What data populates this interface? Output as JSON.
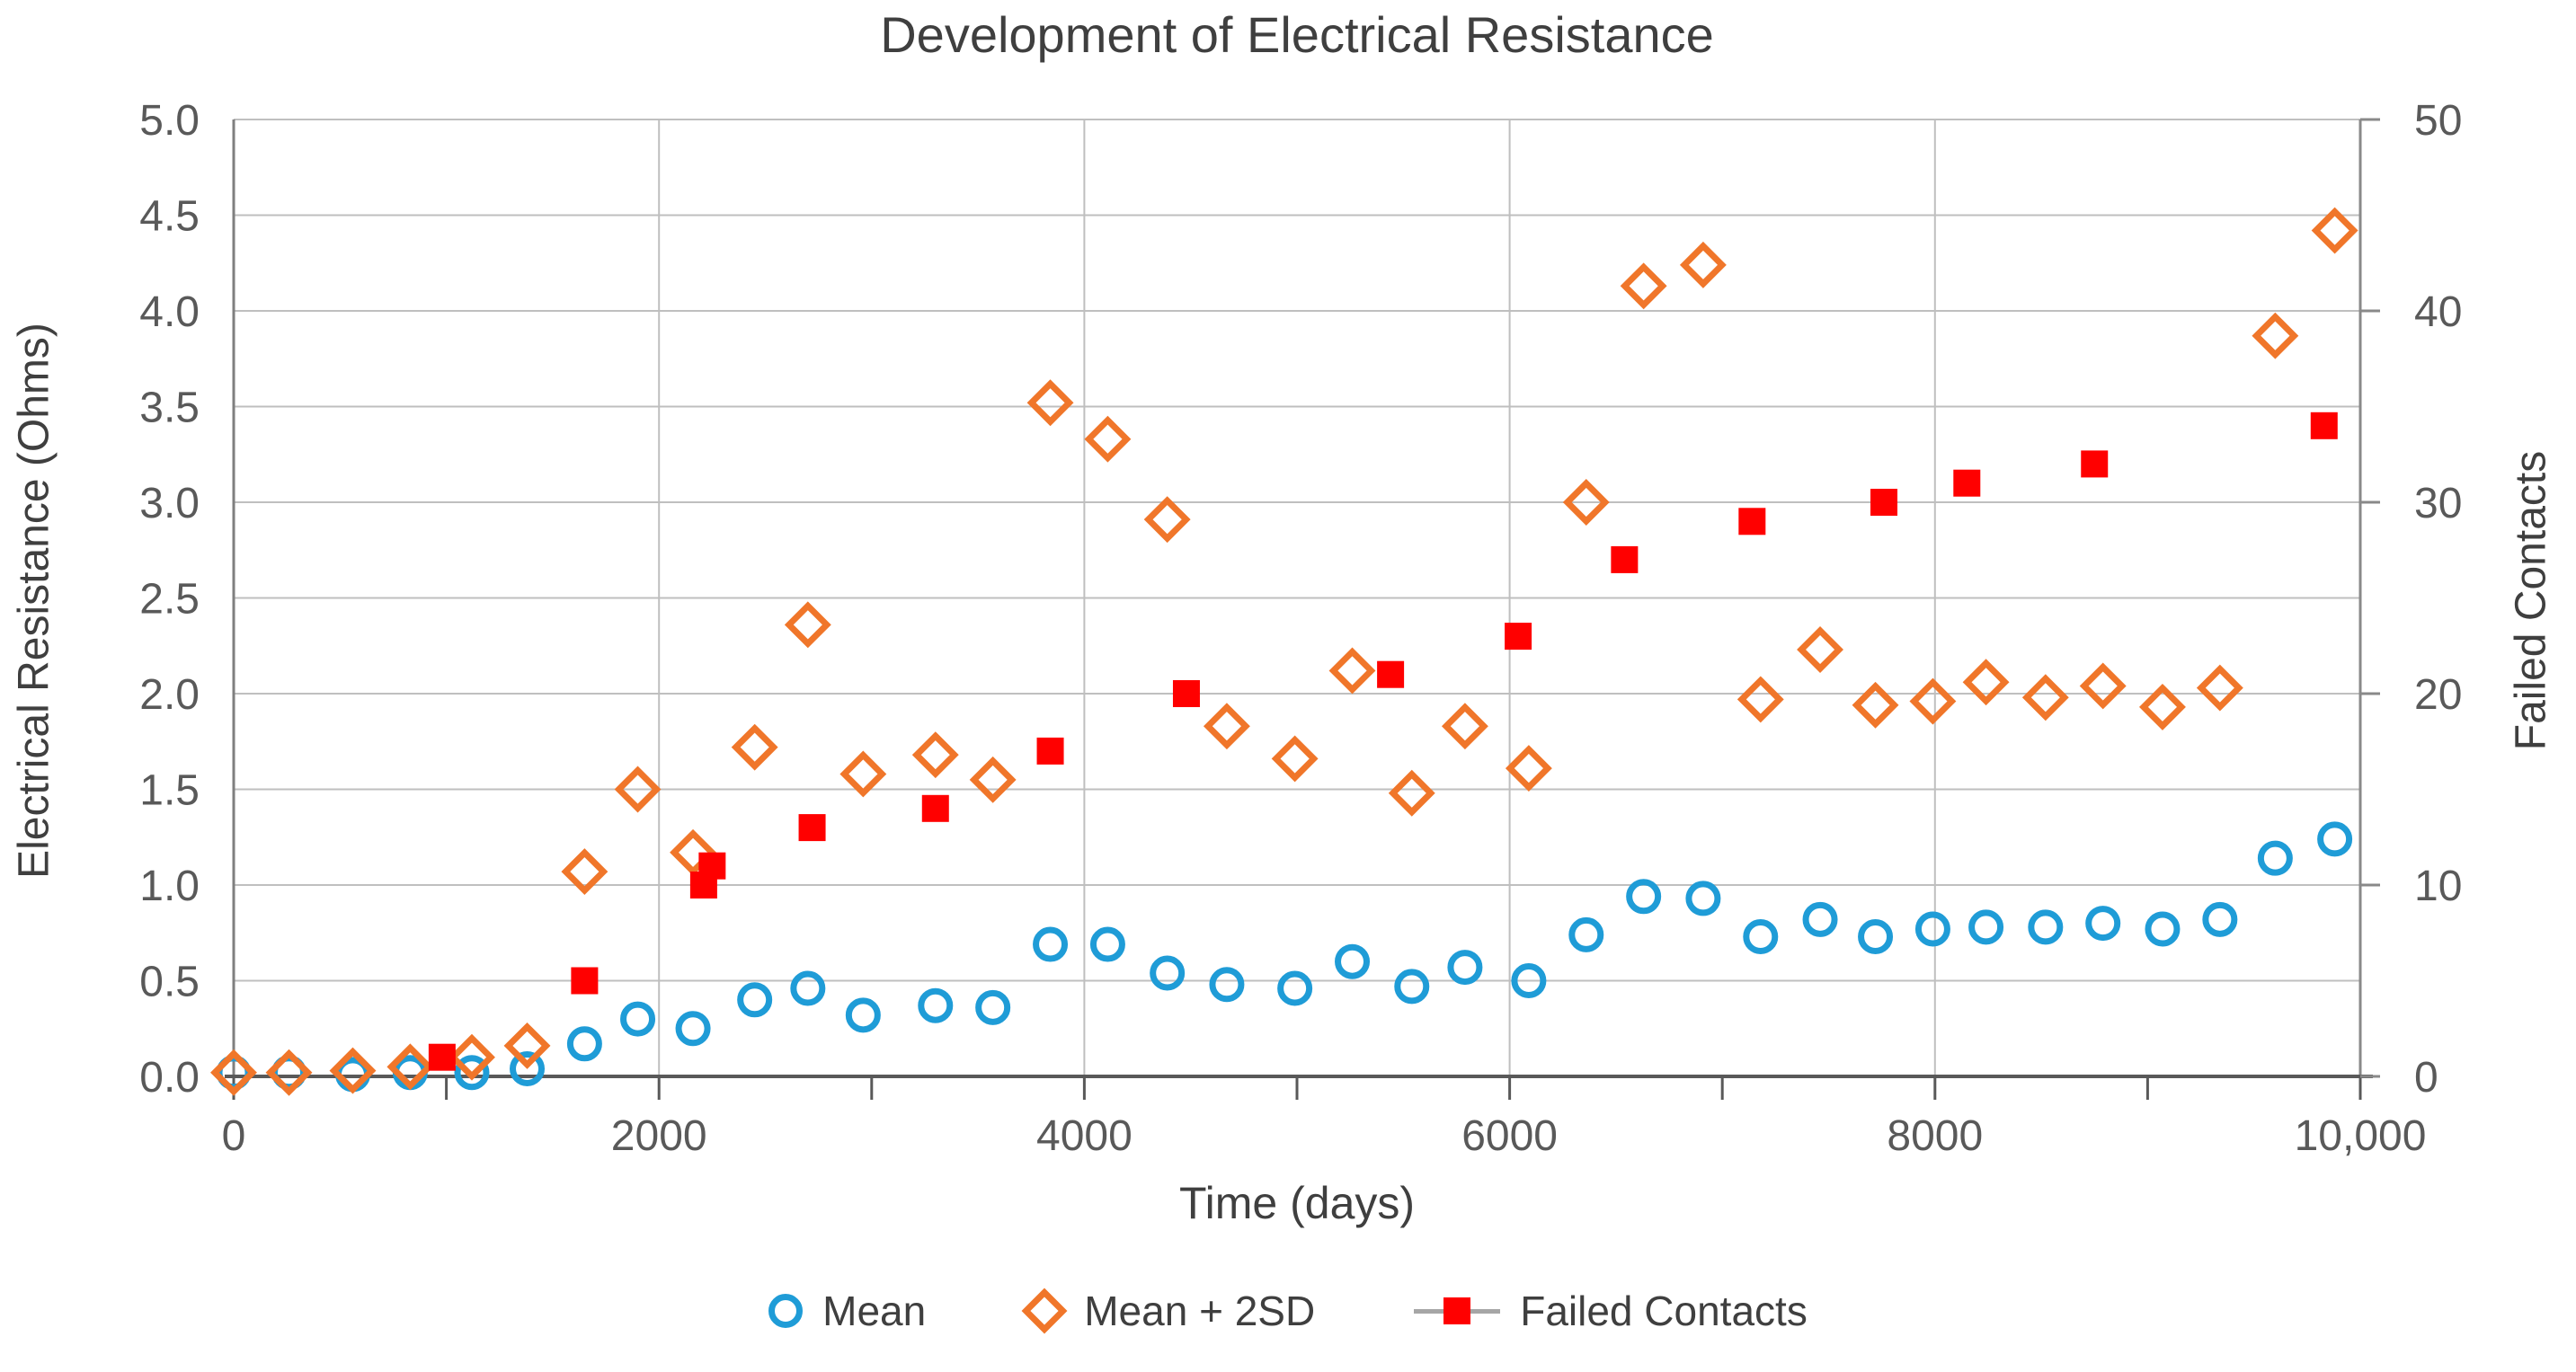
{
  "chart_data": {
    "type": "scatter",
    "title": "Development of Electrical Resistance",
    "xlabel": "Time (days)",
    "ylabel_left": "Electrical Resistance (Ohms)",
    "ylabel_right": "Failed Contacts",
    "grid": true,
    "legend_position": "bottom",
    "x_axis": {
      "min": 0,
      "max": 10000,
      "major_ticks": [
        0,
        2000,
        4000,
        6000,
        8000,
        10000
      ],
      "major_tick_labels": [
        "0",
        "2000",
        "4000",
        "6000",
        "8000",
        "10,000"
      ],
      "minor_ticks": [
        1000,
        3000,
        5000,
        7000,
        9000
      ]
    },
    "y_axis_left": {
      "min": 0,
      "max": 5,
      "step": 0.5,
      "ticks": [
        0,
        0.5,
        1,
        1.5,
        2,
        2.5,
        3,
        3.5,
        4,
        4.5,
        5
      ],
      "tick_labels": [
        "0.0",
        "0.5",
        "1.0",
        "1.5",
        "2.0",
        "2.5",
        "3.0",
        "3.5",
        "4.0",
        "4.5",
        "5.0"
      ]
    },
    "y_axis_right": {
      "min": 0,
      "max": 50,
      "step": 10,
      "ticks": [
        0,
        10,
        20,
        30,
        40,
        50
      ],
      "tick_labels": [
        "0",
        "10",
        "20",
        "30",
        "40",
        "50"
      ]
    },
    "x": [
      0,
      260,
      560,
      830,
      1120,
      1380,
      1650,
      1900,
      2160,
      2450,
      2700,
      2960,
      3300,
      3570,
      3840,
      4110,
      4390,
      4670,
      4990,
      5260,
      5540,
      5790,
      6090,
      6360,
      6630,
      6910,
      7180,
      7460,
      7720,
      7990,
      8240,
      8520,
      8790,
      9070,
      9340,
      9600,
      9880
    ],
    "series": [
      {
        "name": "Mean",
        "marker": "circle",
        "color": "#1F9CD7",
        "y_axis": "left",
        "values": [
          0.02,
          0.02,
          0.01,
          0.02,
          0.02,
          0.04,
          0.17,
          0.3,
          0.25,
          0.4,
          0.46,
          0.32,
          0.37,
          0.36,
          0.69,
          0.69,
          0.54,
          0.48,
          0.46,
          0.6,
          0.47,
          0.57,
          0.5,
          0.74,
          0.94,
          0.93,
          0.73,
          0.82,
          0.73,
          0.77,
          0.78,
          0.78,
          0.8,
          0.77,
          0.82,
          1.14,
          1.24
        ]
      },
      {
        "name": "Mean + 2SD",
        "marker": "diamond",
        "color": "#F0762A",
        "y_axis": "left",
        "values": [
          0.02,
          0.02,
          0.03,
          0.05,
          0.1,
          0.16,
          1.07,
          1.5,
          1.17,
          1.72,
          2.36,
          1.58,
          1.68,
          1.55,
          3.52,
          3.33,
          2.91,
          1.83,
          1.66,
          2.12,
          1.48,
          1.83,
          1.61,
          3.0,
          4.13,
          4.24,
          1.97,
          2.23,
          1.94,
          1.96,
          2.06,
          1.98,
          2.04,
          1.93,
          2.03,
          3.87,
          4.42
        ]
      },
      {
        "name": "Failed Contacts",
        "marker": "square",
        "color": "#FF0000",
        "y_axis": "right",
        "points": [
          [
            980,
            1
          ],
          [
            1650,
            5
          ],
          [
            2210,
            10
          ],
          [
            2250,
            11
          ],
          [
            2720,
            13
          ],
          [
            3300,
            14
          ],
          [
            3840,
            17
          ],
          [
            4480,
            20
          ],
          [
            5440,
            21
          ],
          [
            6040,
            23
          ],
          [
            6540,
            27
          ],
          [
            7140,
            29
          ],
          [
            7760,
            30
          ],
          [
            8150,
            31
          ],
          [
            8750,
            32
          ],
          [
            9830,
            34
          ]
        ]
      }
    ],
    "colors": {
      "gridline": "#BFBFBF",
      "axis_line": "#595959",
      "secondary_axis_line": "#898989",
      "tick_text": "#595959",
      "title_text": "#3f3f3f",
      "legend_line": "#A6A6A6"
    }
  }
}
